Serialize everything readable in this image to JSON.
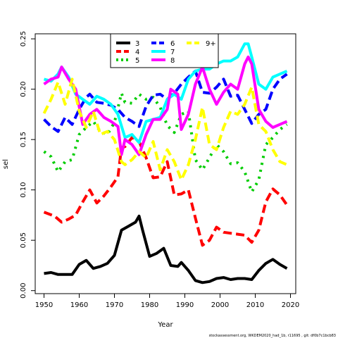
{
  "chart_data": {
    "type": "line",
    "xlabel": "Year",
    "ylabel": "sel",
    "xlim": [
      1947.5,
      2021.5
    ],
    "ylim": [
      -0.003,
      0.255
    ],
    "xticks": [
      1950,
      1960,
      1970,
      1980,
      1990,
      2000,
      2010,
      2020
    ],
    "yticks": [
      0.0,
      0.05,
      0.1,
      0.15,
      0.2,
      0.25
    ],
    "ytick_labels": [
      "0.00",
      "0.05",
      "0.10",
      "0.15",
      "0.20",
      "0.25"
    ],
    "legend_position": "top-center",
    "grid": false,
    "footnote": "stockassessment.org, WKDEM2020_had_1b, r11695 , git: df0b7c1bcb83",
    "series": [
      {
        "name": "3",
        "color": "#000000",
        "dash": "solid",
        "x": [
          1950,
          1952,
          1954,
          1956,
          1958,
          1960,
          1962,
          1964,
          1966,
          1968,
          1970,
          1972,
          1974,
          1976,
          1977,
          1978,
          1980,
          1982,
          1984,
          1986,
          1988,
          1989,
          1991,
          1993,
          1995,
          1997,
          1999,
          2001,
          2003,
          2005,
          2007,
          2009,
          2011,
          2013,
          2014,
          2015,
          2017,
          2019
        ],
        "y": [
          0.017,
          0.018,
          0.016,
          0.016,
          0.016,
          0.026,
          0.03,
          0.022,
          0.024,
          0.027,
          0.035,
          0.06,
          0.064,
          0.068,
          0.074,
          0.06,
          0.034,
          0.037,
          0.042,
          0.025,
          0.024,
          0.028,
          0.02,
          0.01,
          0.008,
          0.009,
          0.012,
          0.013,
          0.011,
          0.012,
          0.012,
          0.011,
          0.02,
          0.027,
          0.029,
          0.031,
          0.026,
          0.022
        ]
      },
      {
        "name": "4",
        "color": "#ff0000",
        "dash": "dashed",
        "x": [
          1950,
          1953,
          1955,
          1957,
          1959,
          1961,
          1963,
          1965,
          1967,
          1969,
          1971,
          1972,
          1973,
          1975,
          1977,
          1979,
          1981,
          1983,
          1985,
          1987,
          1989,
          1991,
          1993,
          1995,
          1997,
          1999,
          2001,
          2003,
          2005,
          2007,
          2009,
          2011,
          2013,
          2015,
          2017,
          2019
        ],
        "y": [
          0.078,
          0.074,
          0.068,
          0.071,
          0.075,
          0.088,
          0.1,
          0.087,
          0.094,
          0.103,
          0.113,
          0.142,
          0.143,
          0.152,
          0.148,
          0.132,
          0.112,
          0.113,
          0.128,
          0.095,
          0.096,
          0.1,
          0.072,
          0.045,
          0.05,
          0.063,
          0.058,
          0.057,
          0.056,
          0.055,
          0.048,
          0.06,
          0.088,
          0.101,
          0.095,
          0.085
        ]
      },
      {
        "name": "5",
        "color": "#00cd00",
        "dash": "dotted",
        "x": [
          1950,
          1952,
          1954,
          1956,
          1958,
          1960,
          1962,
          1964,
          1966,
          1968,
          1970,
          1972,
          1973,
          1975,
          1977,
          1979,
          1981,
          1983,
          1985,
          1987,
          1989,
          1991,
          1993,
          1995,
          1997,
          1999,
          2001,
          2003,
          2005,
          2007,
          2009,
          2011,
          2013,
          2015,
          2017,
          2019
        ],
        "y": [
          0.138,
          0.133,
          0.118,
          0.128,
          0.13,
          0.155,
          0.162,
          0.168,
          0.158,
          0.155,
          0.167,
          0.196,
          0.187,
          0.186,
          0.195,
          0.19,
          0.192,
          0.182,
          0.164,
          0.157,
          0.175,
          0.178,
          0.13,
          0.12,
          0.132,
          0.145,
          0.138,
          0.126,
          0.127,
          0.118,
          0.098,
          0.11,
          0.145,
          0.152,
          0.16,
          0.165
        ]
      },
      {
        "name": "6",
        "color": "#0000ff",
        "dash": "dashed",
        "x": [
          1950,
          1952,
          1954,
          1956,
          1958,
          1960,
          1962,
          1963,
          1965,
          1967,
          1969,
          1971,
          1973,
          1975,
          1977,
          1979,
          1981,
          1983,
          1985,
          1987,
          1989,
          1991,
          1993,
          1995,
          1997,
          1999,
          2001,
          2003,
          2005,
          2007,
          2009,
          2011,
          2013,
          2015,
          2017,
          2019
        ],
        "y": [
          0.17,
          0.163,
          0.158,
          0.172,
          0.165,
          0.18,
          0.192,
          0.195,
          0.187,
          0.186,
          0.184,
          0.18,
          0.172,
          0.168,
          0.163,
          0.183,
          0.194,
          0.195,
          0.19,
          0.196,
          0.205,
          0.212,
          0.218,
          0.197,
          0.196,
          0.202,
          0.21,
          0.193,
          0.194,
          0.18,
          0.166,
          0.175,
          0.18,
          0.2,
          0.21,
          0.215
        ]
      },
      {
        "name": "7",
        "color": "#00ffff",
        "dash": "solid",
        "x": [
          1950,
          1952,
          1954,
          1955,
          1957,
          1959,
          1961,
          1963,
          1965,
          1967,
          1969,
          1971,
          1973,
          1975,
          1977,
          1979,
          1981,
          1983,
          1985,
          1987,
          1989,
          1991,
          1993,
          1995,
          1997,
          1999,
          2001,
          2003,
          2005,
          2007,
          2008,
          2009,
          2011,
          2013,
          2015,
          2017,
          2019
        ],
        "y": [
          0.21,
          0.208,
          0.215,
          0.222,
          0.212,
          0.195,
          0.19,
          0.185,
          0.193,
          0.19,
          0.185,
          0.175,
          0.152,
          0.155,
          0.147,
          0.168,
          0.17,
          0.172,
          0.19,
          0.195,
          0.19,
          0.21,
          0.218,
          0.22,
          0.22,
          0.225,
          0.228,
          0.228,
          0.232,
          0.245,
          0.245,
          0.232,
          0.205,
          0.2,
          0.212,
          0.215,
          0.218
        ]
      },
      {
        "name": "8",
        "color": "#ff00ff",
        "dash": "solid",
        "x": [
          1950,
          1952,
          1954,
          1955,
          1957,
          1959,
          1961,
          1963,
          1965,
          1967,
          1969,
          1971,
          1972,
          1973,
          1975,
          1977,
          1979,
          1981,
          1983,
          1985,
          1986,
          1988,
          1989,
          1991,
          1993,
          1995,
          1997,
          1999,
          2001,
          2003,
          2005,
          2007,
          2008,
          2009,
          2011,
          2013,
          2015,
          2017,
          2019
        ],
        "y": [
          0.205,
          0.21,
          0.212,
          0.222,
          0.21,
          0.2,
          0.165,
          0.175,
          0.18,
          0.172,
          0.168,
          0.163,
          0.135,
          0.15,
          0.145,
          0.135,
          0.155,
          0.17,
          0.17,
          0.18,
          0.2,
          0.195,
          0.16,
          0.175,
          0.205,
          0.222,
          0.2,
          0.185,
          0.197,
          0.205,
          0.2,
          0.225,
          0.232,
          0.225,
          0.18,
          0.168,
          0.162,
          0.165,
          0.168
        ]
      },
      {
        "name": "9+",
        "color": "#ffff00",
        "dash": "dashed",
        "x": [
          1950,
          1952,
          1954,
          1956,
          1958,
          1960,
          1962,
          1964,
          1966,
          1968,
          1970,
          1972,
          1973,
          1975,
          1977,
          1979,
          1981,
          1983,
          1985,
          1987,
          1989,
          1991,
          1993,
          1995,
          1997,
          1999,
          2001,
          2003,
          2005,
          2007,
          2009,
          2011,
          2013,
          2015,
          2017,
          2019
        ],
        "y": [
          0.176,
          0.19,
          0.207,
          0.185,
          0.21,
          0.178,
          0.162,
          0.178,
          0.155,
          0.158,
          0.15,
          0.128,
          0.125,
          0.13,
          0.138,
          0.132,
          0.148,
          0.12,
          0.14,
          0.128,
          0.11,
          0.125,
          0.15,
          0.182,
          0.145,
          0.14,
          0.162,
          0.178,
          0.175,
          0.185,
          0.202,
          0.165,
          0.158,
          0.14,
          0.128,
          0.125
        ]
      }
    ],
    "legend_order": [
      0,
      3,
      1,
      4,
      2,
      5,
      6
    ]
  }
}
